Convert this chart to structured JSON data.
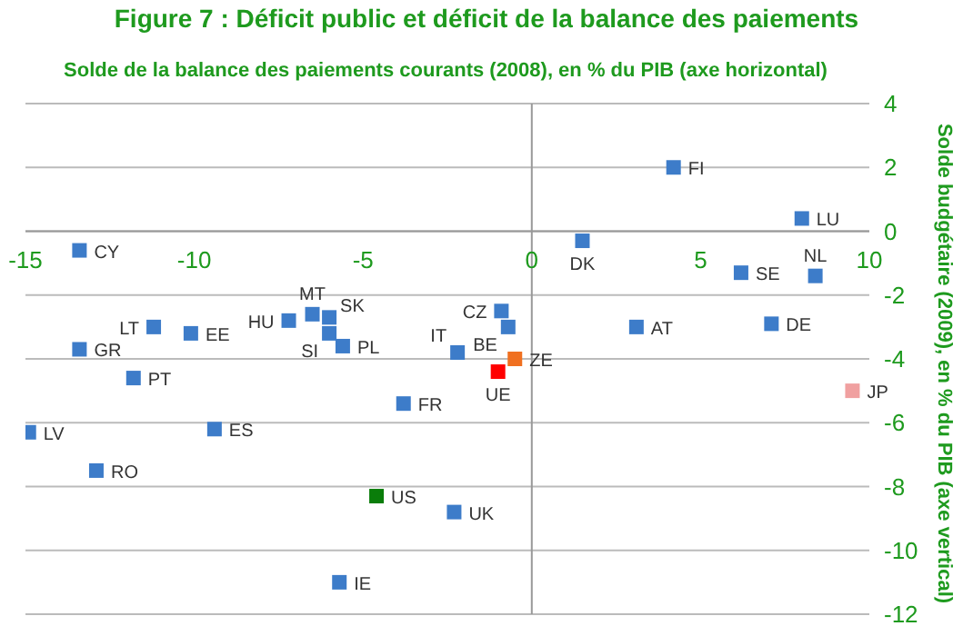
{
  "chart_data": {
    "type": "scatter",
    "title": "Figure 7 : Déficit public et déficit de la balance des paiements",
    "xlabel": "Solde de la balance des paiements courants (2008), en % du PIB (axe horizontal)",
    "ylabel": "Solde budgétaire (2009), en % du PIB (axe vertical)",
    "xlim": [
      -15,
      10
    ],
    "xticks": [
      -15,
      -10,
      -5,
      0,
      5,
      10
    ],
    "ylim": [
      -12,
      4
    ],
    "yticks": [
      -12,
      -10,
      -8,
      -6,
      -4,
      -2,
      0,
      2,
      4
    ],
    "grid": "y",
    "marker": "square",
    "series": [
      {
        "x": [
          -13.4,
          -11.2,
          -10.1,
          -13.4,
          -11.8,
          -7.2,
          -6.5,
          -6.0,
          -6.0,
          -5.6,
          -2.2,
          -0.9,
          -0.7,
          -0.5,
          -1.0,
          1.5,
          4.2,
          8.0,
          6.2,
          8.4,
          3.1,
          7.1,
          9.5,
          -3.8,
          -14.9,
          -9.4,
          -12.9,
          -4.6,
          -2.3,
          -5.7
        ],
        "values": [
          -0.6,
          -3.0,
          -3.2,
          -3.7,
          -4.6,
          -2.8,
          -2.6,
          -2.7,
          -3.2,
          -3.6,
          -3.8,
          -2.5,
          -3.0,
          -4.0,
          -4.4,
          -0.3,
          2.0,
          0.4,
          -1.3,
          -1.4,
          -3.0,
          -2.9,
          -5.0,
          -5.4,
          -6.3,
          -6.2,
          -7.5,
          -8.3,
          -8.8,
          -11.0
        ],
        "value_labels": [
          "CY",
          "LT",
          "EE",
          "GR",
          "PT",
          "HU",
          "MT",
          "SK",
          "SI",
          "PL",
          "IT",
          "CZ",
          "BE",
          "ZE",
          "UE",
          "DK",
          "FI",
          "LU",
          "SE",
          "NL",
          "AT",
          "DE",
          "JP",
          "FR",
          "LV",
          "ES",
          "RO",
          "US",
          "UK",
          "IE"
        ],
        "colors": [
          "#3d7cc9",
          "#3d7cc9",
          "#3d7cc9",
          "#3d7cc9",
          "#3d7cc9",
          "#3d7cc9",
          "#3d7cc9",
          "#3d7cc9",
          "#3d7cc9",
          "#3d7cc9",
          "#3d7cc9",
          "#3d7cc9",
          "#3d7cc9",
          "#f07020",
          "#ff0000",
          "#3d7cc9",
          "#3d7cc9",
          "#3d7cc9",
          "#3d7cc9",
          "#3d7cc9",
          "#3d7cc9",
          "#3d7cc9",
          "#f0a0a0",
          "#3d7cc9",
          "#3d7cc9",
          "#3d7cc9",
          "#3d7cc9",
          "#0a7d0a",
          "#3d7cc9",
          "#3d7cc9"
        ]
      }
    ]
  }
}
